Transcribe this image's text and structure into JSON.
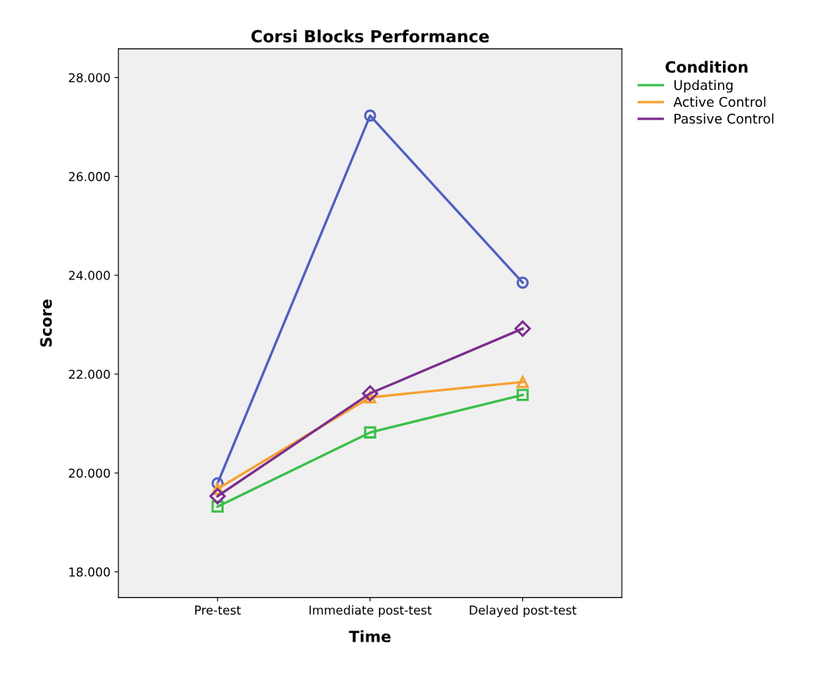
{
  "chart_data": {
    "type": "line",
    "title": "Corsi Blocks Performance",
    "xlabel": "Time",
    "ylabel": "Score",
    "legend_title": "Condition",
    "categories": [
      "Pre-test",
      "Immediate post-test",
      "Delayed post-test"
    ],
    "series": [
      {
        "color": "#4e5fbf",
        "marker": "circle",
        "values": [
          19.79,
          27.23,
          23.85
        ]
      },
      {
        "name": "Updating",
        "color": "#3cbf4a",
        "marker": "square",
        "values": [
          19.32,
          20.82,
          21.58
        ]
      },
      {
        "name": "Active Control",
        "color": "#f7a030",
        "marker": "triangle",
        "values": [
          19.68,
          21.53,
          21.84
        ]
      },
      {
        "name": "Passive Control",
        "color": "#7b2d8e",
        "marker": "diamond",
        "values": [
          19.53,
          21.61,
          22.92
        ]
      }
    ],
    "ylim": [
      17.48,
      28.58
    ],
    "yticks": [
      {
        "value": 18,
        "label": "18.000"
      },
      {
        "value": 20,
        "label": "20.000"
      },
      {
        "value": 22,
        "label": "22.000"
      },
      {
        "value": 24,
        "label": "24.000"
      },
      {
        "value": 26,
        "label": "26.000"
      },
      {
        "value": 28,
        "label": "28.000"
      }
    ],
    "grid": false,
    "legend": "right",
    "line_style": "solid"
  }
}
